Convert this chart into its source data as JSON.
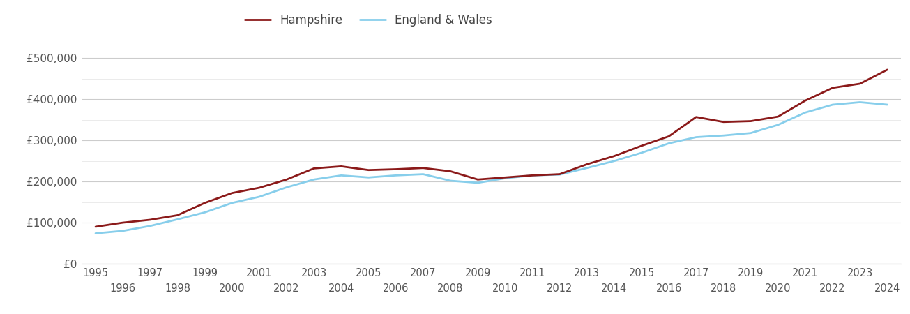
{
  "hampshire": {
    "years": [
      1995,
      1996,
      1997,
      1998,
      1999,
      2000,
      2001,
      2002,
      2003,
      2004,
      2005,
      2006,
      2007,
      2008,
      2009,
      2010,
      2011,
      2012,
      2013,
      2014,
      2015,
      2016,
      2017,
      2018,
      2019,
      2020,
      2021,
      2022,
      2023,
      2024
    ],
    "values": [
      90000,
      100000,
      107000,
      118000,
      148000,
      172000,
      185000,
      205000,
      232000,
      237000,
      228000,
      230000,
      233000,
      225000,
      205000,
      210000,
      215000,
      218000,
      242000,
      262000,
      287000,
      310000,
      357000,
      345000,
      347000,
      358000,
      397000,
      428000,
      438000,
      472000
    ]
  },
  "england_wales": {
    "years": [
      1995,
      1996,
      1997,
      1998,
      1999,
      2000,
      2001,
      2002,
      2003,
      2004,
      2005,
      2006,
      2007,
      2008,
      2009,
      2010,
      2011,
      2012,
      2013,
      2014,
      2015,
      2016,
      2017,
      2018,
      2019,
      2020,
      2021,
      2022,
      2023,
      2024
    ],
    "values": [
      74000,
      80000,
      92000,
      108000,
      125000,
      148000,
      163000,
      186000,
      205000,
      215000,
      210000,
      215000,
      218000,
      202000,
      197000,
      208000,
      215000,
      217000,
      233000,
      250000,
      270000,
      293000,
      308000,
      312000,
      318000,
      338000,
      368000,
      387000,
      393000,
      387000
    ]
  },
  "hampshire_color": "#8B1A1A",
  "england_wales_color": "#87CEEB",
  "background_color": "#ffffff",
  "major_grid_color": "#cccccc",
  "minor_grid_color": "#e8e8e8",
  "ylim": [
    0,
    550000
  ],
  "yticks_major": [
    0,
    100000,
    200000,
    300000,
    400000,
    500000
  ],
  "ytick_labels": [
    "£0",
    "£100,000",
    "£200,000",
    "£300,000",
    "£400,000",
    "£500,000"
  ],
  "xticks_row1": [
    1995,
    1997,
    1999,
    2001,
    2003,
    2005,
    2007,
    2009,
    2011,
    2013,
    2015,
    2017,
    2019,
    2021,
    2023
  ],
  "xticks_row2": [
    1996,
    1998,
    2000,
    2002,
    2004,
    2006,
    2008,
    2010,
    2012,
    2014,
    2016,
    2018,
    2020,
    2022,
    2024
  ],
  "legend_hampshire": "Hampshire",
  "legend_england_wales": "England & Wales",
  "line_width": 2.0,
  "xlim": [
    1994.5,
    2024.5
  ]
}
